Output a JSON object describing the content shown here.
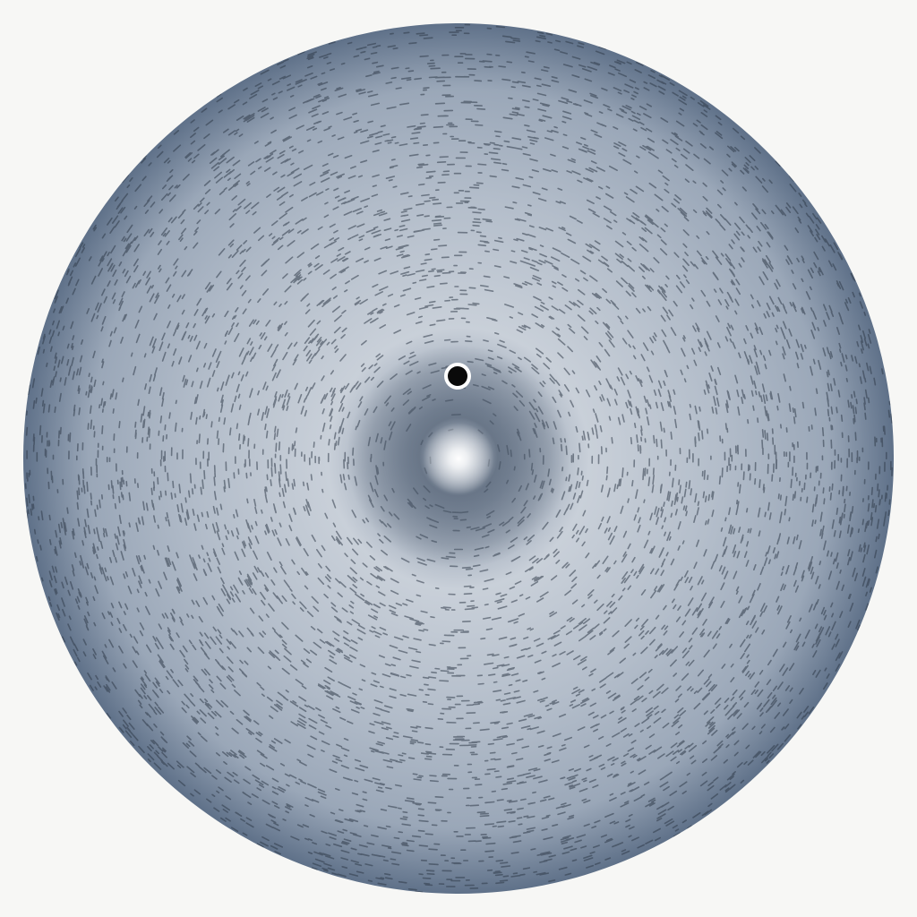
{
  "canvas": {
    "background_color": "#f7f7f5"
  },
  "disc": {
    "shape": "circle",
    "edge_color": "#5f7189",
    "mid_color": "#9aa7b8",
    "light_color": "#c9d0d9",
    "texture": "concentric-stroke-speckles",
    "speckle_color": "#2f3a48"
  },
  "center_glow": {
    "color": "#ffffff",
    "vortex_dark_color": "#4e5b6c"
  },
  "marker": {
    "icon": "black-dot-icon",
    "fill_color": "#0a0a0a",
    "ring_color": "#ffffff"
  }
}
